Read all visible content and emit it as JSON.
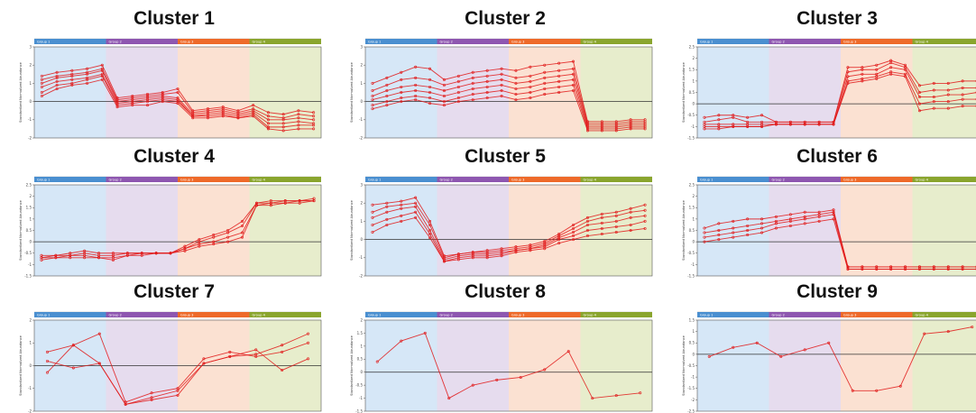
{
  "colors": {
    "group_headers": [
      "#4a8fd0",
      "#8e57b0",
      "#ee6a2a",
      "#8aa52e"
    ],
    "group_fills": [
      "#d6e7f7",
      "#e6dcee",
      "#fbe1d2",
      "#e7edcc"
    ],
    "line": "#e01818"
  },
  "chart_data": [
    {
      "type": "line",
      "title": "Cluster 1",
      "ylabel": "Standardized Normalized Abundance",
      "groups": [
        "Group 1",
        "Group 2",
        "Group 3",
        "Group 4"
      ],
      "ylim": [
        -2,
        3
      ],
      "yticks": [
        -2,
        -1,
        0,
        1,
        2,
        3
      ],
      "samples": 19,
      "series": [
        {
          "values": [
            1.4,
            1.6,
            1.7,
            1.8,
            2.0,
            0.2,
            0.3,
            0.4,
            0.5,
            0.7,
            -0.5,
            -0.4,
            -0.3,
            -0.5,
            -0.2,
            -0.6,
            -0.7,
            -0.5,
            -0.6
          ]
        },
        {
          "values": [
            1.2,
            1.4,
            1.5,
            1.6,
            1.8,
            0.1,
            0.2,
            0.3,
            0.4,
            0.5,
            -0.6,
            -0.5,
            -0.4,
            -0.6,
            -0.4,
            -0.8,
            -0.9,
            -0.7,
            -0.8
          ]
        },
        {
          "values": [
            1.0,
            1.3,
            1.4,
            1.5,
            1.7,
            0.0,
            0.1,
            0.2,
            0.3,
            0.2,
            -0.7,
            -0.6,
            -0.5,
            -0.7,
            -0.5,
            -1.0,
            -1.0,
            -0.9,
            -1.0
          ]
        },
        {
          "values": [
            0.8,
            1.1,
            1.2,
            1.3,
            1.5,
            -0.1,
            0.0,
            0.1,
            0.2,
            0.1,
            -0.8,
            -0.7,
            -0.6,
            -0.8,
            -0.6,
            -1.2,
            -1.2,
            -1.1,
            -1.2
          ]
        },
        {
          "values": [
            0.5,
            0.9,
            1.0,
            1.2,
            1.4,
            -0.2,
            -0.1,
            0.0,
            0.1,
            0.0,
            -0.8,
            -0.8,
            -0.7,
            -0.9,
            -0.7,
            -1.4,
            -1.4,
            -1.3,
            -1.3
          ]
        },
        {
          "values": [
            0.3,
            0.7,
            0.9,
            1.0,
            1.2,
            -0.3,
            -0.2,
            -0.2,
            0.0,
            -0.1,
            -0.9,
            -0.9,
            -0.8,
            -0.9,
            -0.8,
            -1.5,
            -1.6,
            -1.5,
            -1.5
          ]
        }
      ]
    },
    {
      "type": "line",
      "title": "Cluster 2",
      "ylabel": "Standardized Normalized Abundance",
      "groups": [
        "Group 1",
        "Group 2",
        "Group 3",
        "Group 4"
      ],
      "ylim": [
        -2,
        3
      ],
      "yticks": [
        -2,
        -1,
        0,
        1,
        2,
        3
      ],
      "samples": 20,
      "series": [
        {
          "values": [
            1.0,
            1.3,
            1.6,
            1.9,
            1.8,
            1.2,
            1.4,
            1.6,
            1.7,
            1.8,
            1.7,
            1.9,
            2.0,
            2.1,
            2.2,
            -1.1,
            -1.1,
            -1.1,
            -1.0,
            -1.0
          ]
        },
        {
          "values": [
            0.6,
            0.9,
            1.2,
            1.3,
            1.2,
            0.9,
            1.1,
            1.3,
            1.4,
            1.5,
            1.3,
            1.4,
            1.6,
            1.7,
            1.8,
            -1.2,
            -1.2,
            -1.2,
            -1.1,
            -1.1
          ]
        },
        {
          "values": [
            0.3,
            0.6,
            0.8,
            0.9,
            0.8,
            0.6,
            0.8,
            1.0,
            1.1,
            1.2,
            1.0,
            1.1,
            1.3,
            1.4,
            1.5,
            -1.3,
            -1.3,
            -1.3,
            -1.2,
            -1.2
          ]
        },
        {
          "values": [
            0.1,
            0.3,
            0.5,
            0.6,
            0.5,
            0.3,
            0.5,
            0.7,
            0.8,
            0.9,
            0.7,
            0.8,
            1.0,
            1.1,
            1.2,
            -1.4,
            -1.4,
            -1.4,
            -1.3,
            -1.3
          ]
        },
        {
          "values": [
            -0.2,
            0.0,
            0.2,
            0.3,
            0.2,
            0.0,
            0.2,
            0.4,
            0.5,
            0.6,
            0.4,
            0.5,
            0.7,
            0.8,
            0.9,
            -1.5,
            -1.5,
            -1.5,
            -1.4,
            -1.4
          ]
        },
        {
          "values": [
            -0.4,
            -0.2,
            0.0,
            0.1,
            -0.1,
            -0.2,
            0.0,
            0.1,
            0.2,
            0.3,
            0.1,
            0.2,
            0.4,
            0.5,
            0.6,
            -1.6,
            -1.6,
            -1.6,
            -1.5,
            -1.5
          ]
        }
      ]
    },
    {
      "type": "line",
      "title": "Cluster 3",
      "ylabel": "Standardized Normalized Abundance",
      "groups": [
        "Group 1",
        "Group 2",
        "Group 3",
        "Group 4"
      ],
      "ylim": [
        -1.5,
        2.5
      ],
      "yticks": [
        -1.5,
        -1,
        -0.5,
        0,
        0.5,
        1,
        1.5,
        2,
        2.5
      ],
      "samples": 20,
      "series": [
        {
          "values": [
            -0.6,
            -0.5,
            -0.5,
            -0.6,
            -0.5,
            -0.8,
            -0.8,
            -0.8,
            -0.8,
            -0.8,
            1.6,
            1.6,
            1.7,
            1.9,
            1.7,
            0.8,
            0.9,
            0.9,
            1.0,
            1.0
          ]
        },
        {
          "values": [
            -0.8,
            -0.7,
            -0.6,
            -0.8,
            -0.8,
            -0.8,
            -0.8,
            -0.8,
            -0.8,
            -0.8,
            1.4,
            1.5,
            1.5,
            1.8,
            1.6,
            0.5,
            0.6,
            0.6,
            0.7,
            0.7
          ]
        },
        {
          "values": [
            -0.9,
            -0.9,
            -0.9,
            -0.9,
            -0.9,
            -0.9,
            -0.9,
            -0.9,
            -0.9,
            -0.9,
            1.2,
            1.3,
            1.3,
            1.6,
            1.5,
            0.3,
            0.3,
            0.4,
            0.4,
            0.5
          ]
        },
        {
          "values": [
            -1.0,
            -1.0,
            -1.0,
            -1.0,
            -1.0,
            -0.9,
            -0.9,
            -0.9,
            -0.9,
            -0.9,
            1.0,
            1.1,
            1.2,
            1.4,
            1.3,
            0.0,
            0.1,
            0.1,
            0.2,
            0.2
          ]
        },
        {
          "values": [
            -1.1,
            -1.1,
            -1.0,
            -1.0,
            -1.0,
            -0.9,
            -0.9,
            -0.9,
            -0.9,
            -0.9,
            0.9,
            1.0,
            1.1,
            1.3,
            1.2,
            -0.3,
            -0.2,
            -0.2,
            -0.1,
            -0.1
          ]
        }
      ]
    },
    {
      "type": "line",
      "title": "Cluster 4",
      "ylabel": "Standardized Normalized Abundance",
      "groups": [
        "Group 1",
        "Group 2",
        "Group 3",
        "Group 4"
      ],
      "ylim": [
        -1.5,
        2.5
      ],
      "yticks": [
        -1.5,
        -1,
        -0.5,
        0,
        0.5,
        1,
        1.5,
        2,
        2.5
      ],
      "samples": 20,
      "series": [
        {
          "values": [
            -0.6,
            -0.6,
            -0.5,
            -0.4,
            -0.5,
            -0.5,
            -0.5,
            -0.5,
            -0.5,
            -0.5,
            -0.2,
            0.1,
            0.3,
            0.5,
            0.9,
            1.7,
            1.8,
            1.8,
            1.8,
            1.9
          ]
        },
        {
          "values": [
            -0.7,
            -0.6,
            -0.6,
            -0.5,
            -0.6,
            -0.6,
            -0.5,
            -0.5,
            -0.5,
            -0.5,
            -0.3,
            0.0,
            0.2,
            0.4,
            0.7,
            1.7,
            1.7,
            1.8,
            1.8,
            1.8
          ]
        },
        {
          "values": [
            -0.7,
            -0.7,
            -0.6,
            -0.6,
            -0.7,
            -0.8,
            -0.6,
            -0.5,
            -0.5,
            -0.5,
            -0.3,
            -0.1,
            0.0,
            0.2,
            0.4,
            1.6,
            1.7,
            1.7,
            1.8,
            1.8
          ]
        },
        {
          "values": [
            -0.8,
            -0.7,
            -0.7,
            -0.7,
            -0.7,
            -0.7,
            -0.6,
            -0.6,
            -0.5,
            -0.5,
            -0.4,
            -0.2,
            -0.1,
            0.0,
            0.2,
            1.6,
            1.6,
            1.7,
            1.7,
            1.8
          ]
        }
      ]
    },
    {
      "type": "line",
      "title": "Cluster 5",
      "ylabel": "Standardized Normalized Abundance",
      "groups": [
        "Group 1",
        "Group 2",
        "Group 3",
        "Group 4"
      ],
      "ylim": [
        -2,
        3
      ],
      "yticks": [
        -2,
        -1,
        0,
        1,
        2,
        3
      ],
      "samples": 20,
      "series": [
        {
          "values": [
            1.9,
            2.0,
            2.1,
            2.3,
            1.0,
            -0.9,
            -0.8,
            -0.7,
            -0.6,
            -0.5,
            -0.4,
            -0.3,
            -0.1,
            0.3,
            0.8,
            1.2,
            1.4,
            1.5,
            1.7,
            1.9
          ]
        },
        {
          "values": [
            1.5,
            1.8,
            1.9,
            2.0,
            0.8,
            -1.0,
            -0.8,
            -0.7,
            -0.7,
            -0.6,
            -0.5,
            -0.4,
            -0.2,
            0.2,
            0.6,
            1.0,
            1.2,
            1.3,
            1.5,
            1.6
          ]
        },
        {
          "values": [
            1.2,
            1.5,
            1.7,
            1.8,
            0.5,
            -1.1,
            -0.9,
            -0.8,
            -0.8,
            -0.7,
            -0.6,
            -0.5,
            -0.3,
            0.1,
            0.4,
            0.8,
            0.9,
            1.0,
            1.2,
            1.3
          ]
        },
        {
          "values": [
            0.8,
            1.1,
            1.3,
            1.5,
            0.3,
            -1.2,
            -1.0,
            -0.9,
            -0.9,
            -0.8,
            -0.6,
            -0.5,
            -0.4,
            0.0,
            0.2,
            0.5,
            0.6,
            0.7,
            0.8,
            1.0
          ]
        },
        {
          "values": [
            0.4,
            0.8,
            1.0,
            1.2,
            0.1,
            -1.2,
            -1.1,
            -1.0,
            -1.0,
            -0.9,
            -0.7,
            -0.6,
            -0.5,
            -0.2,
            0.0,
            0.2,
            0.3,
            0.4,
            0.5,
            0.6
          ]
        }
      ]
    },
    {
      "type": "line",
      "title": "Cluster 6",
      "ylabel": "Standardized Normalized Abundance",
      "groups": [
        "Group 1",
        "Group 2",
        "Group 3",
        "Group 4"
      ],
      "ylim": [
        -1.5,
        2.5
      ],
      "yticks": [
        -1.5,
        -1,
        -0.5,
        0,
        0.5,
        1,
        1.5,
        2,
        2.5
      ],
      "samples": 20,
      "series": [
        {
          "values": [
            0.6,
            0.8,
            0.9,
            1.0,
            1.0,
            1.1,
            1.2,
            1.3,
            1.3,
            1.4,
            -1.1,
            -1.1,
            -1.1,
            -1.1,
            -1.1,
            -1.1,
            -1.1,
            -1.1,
            -1.1,
            -1.1
          ]
        },
        {
          "values": [
            0.4,
            0.5,
            0.6,
            0.7,
            0.8,
            0.9,
            1.0,
            1.1,
            1.2,
            1.3,
            -1.1,
            -1.1,
            -1.1,
            -1.1,
            -1.1,
            -1.1,
            -1.1,
            -1.1,
            -1.1,
            -1.1
          ]
        },
        {
          "values": [
            0.2,
            0.3,
            0.4,
            0.5,
            0.6,
            0.8,
            0.9,
            1.0,
            1.1,
            1.2,
            -1.2,
            -1.2,
            -1.2,
            -1.2,
            -1.2,
            -1.2,
            -1.2,
            -1.2,
            -1.2,
            -1.2
          ]
        },
        {
          "values": [
            0.0,
            0.1,
            0.2,
            0.3,
            0.4,
            0.6,
            0.7,
            0.8,
            0.9,
            1.0,
            -1.2,
            -1.2,
            -1.2,
            -1.2,
            -1.2,
            -1.2,
            -1.2,
            -1.2,
            -1.2,
            -1.2
          ]
        }
      ]
    },
    {
      "type": "line",
      "title": "Cluster 7",
      "ylabel": "Standardized Normalized Abundance",
      "groups": [
        "Group 1",
        "Group 2",
        "Group 3",
        "Group 4"
      ],
      "ylim": [
        -2,
        2
      ],
      "yticks": [
        -2,
        -1,
        0,
        1,
        2
      ],
      "samples": 11,
      "series": [
        {
          "values": [
            0.6,
            0.9,
            1.4,
            -1.6,
            -1.2,
            -1.0,
            0.3,
            0.6,
            0.4,
            0.6,
            1.0
          ]
        },
        {
          "values": [
            -0.3,
            0.9,
            0.1,
            -1.7,
            -1.4,
            -1.1,
            0.1,
            0.4,
            0.5,
            0.9,
            1.4
          ]
        },
        {
          "values": [
            0.2,
            -0.1,
            0.1,
            -1.7,
            -1.5,
            -1.3,
            0.1,
            0.4,
            0.7,
            -0.2,
            0.3
          ]
        }
      ]
    },
    {
      "type": "line",
      "title": "Cluster 8",
      "ylabel": "Standardized Normalized Abundance",
      "groups": [
        "Group 1",
        "Group 2",
        "Group 3",
        "Group 4"
      ],
      "ylim": [
        -1.5,
        2.0
      ],
      "yticks": [
        -1.5,
        -1.0,
        -0.5,
        0.0,
        0.5,
        1.0,
        1.5,
        2.0
      ],
      "samples": 12,
      "series": [
        {
          "values": [
            0.4,
            1.2,
            1.5,
            -1.0,
            -0.5,
            -0.3,
            -0.2,
            0.1,
            0.8,
            -1.0,
            -0.9,
            -0.8
          ]
        }
      ]
    },
    {
      "type": "line",
      "title": "Cluster 9",
      "ylabel": "Standardized Normalized Abundance",
      "groups": [
        "Group 1",
        "Group 2",
        "Group 3",
        "Group 4"
      ],
      "ylim": [
        -2.5,
        1.5
      ],
      "yticks": [
        -2.5,
        -2.0,
        -1.5,
        -1.0,
        -0.5,
        0.0,
        0.5,
        1.0,
        1.5
      ],
      "samples": 12,
      "series": [
        {
          "values": [
            -0.1,
            0.3,
            0.5,
            -0.1,
            0.2,
            0.5,
            -1.6,
            -1.6,
            -1.4,
            0.9,
            1.0,
            1.2
          ]
        }
      ]
    }
  ]
}
